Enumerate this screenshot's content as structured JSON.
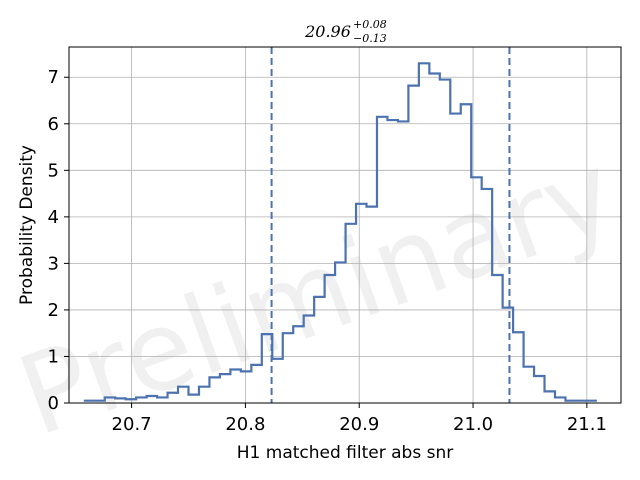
{
  "chart_data": {
    "type": "histogram",
    "title": {
      "main": "20.96",
      "upper": "+0.08",
      "lower": "−0.13"
    },
    "xlabel": "H1 matched filter abs snr",
    "ylabel": "Probability Density",
    "watermark": "Preliminary",
    "xlim": [
      20.645,
      21.13
    ],
    "ylim": [
      0,
      7.65
    ],
    "xticks": [
      20.7,
      20.8,
      20.9,
      21.0,
      21.1
    ],
    "xtick_labels": [
      "20.7",
      "20.8",
      "20.9",
      "21.0",
      "21.1"
    ],
    "yticks": [
      0,
      1,
      2,
      3,
      4,
      5,
      6,
      7
    ],
    "ytick_labels": [
      "0",
      "1",
      "2",
      "3",
      "4",
      "5",
      "6",
      "7"
    ],
    "grid": true,
    "line_color": "#4c72b0",
    "bin_edges": [
      20.658,
      20.6672,
      20.6764,
      20.6856,
      20.6948,
      20.704,
      20.7132,
      20.7224,
      20.7316,
      20.7408,
      20.75,
      20.7592,
      20.7684,
      20.7776,
      20.7868,
      20.796,
      20.8052,
      20.8144,
      20.8236,
      20.8328,
      20.842,
      20.8512,
      20.8604,
      20.8696,
      20.8788,
      20.888,
      20.8972,
      20.9064,
      20.9156,
      20.9248,
      20.934,
      20.9432,
      20.9524,
      20.9616,
      20.9708,
      20.98,
      20.9892,
      20.9984,
      21.0076,
      21.0168,
      21.026,
      21.0352,
      21.0444,
      21.0536,
      21.0628,
      21.072,
      21.0812,
      21.0904,
      21.0996,
      21.1088
    ],
    "density": [
      0.05,
      0.05,
      0.12,
      0.1,
      0.08,
      0.12,
      0.15,
      0.12,
      0.22,
      0.35,
      0.18,
      0.35,
      0.55,
      0.62,
      0.72,
      0.68,
      0.82,
      1.48,
      0.95,
      1.5,
      1.65,
      1.88,
      2.28,
      2.75,
      3.02,
      3.85,
      4.28,
      4.22,
      6.15,
      6.08,
      6.05,
      6.82,
      7.3,
      7.08,
      6.95,
      6.22,
      6.42,
      4.85,
      4.6,
      2.75,
      2.05,
      1.52,
      0.78,
      0.58,
      0.25,
      0.12,
      0.05,
      0.05,
      0.05
    ],
    "vlines": [
      20.823,
      21.032
    ]
  }
}
